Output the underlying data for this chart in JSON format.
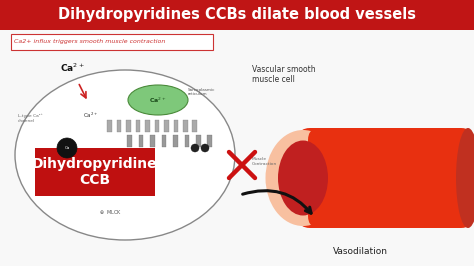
{
  "title": "Dihydropyridines CCBs dilate blood vessels",
  "title_bg_color": "#c01515",
  "title_text_color": "#ffffff",
  "bg_color": "#f8f8f8",
  "subtitle_box": "Ca2+ influx triggers smooth muscle contraction",
  "label_vascular": "Vascular smooth\nmuscle cell",
  "label_vasodilation": "Vasodilation",
  "label_ccb": "Dihydropyridine\nCCB",
  "ccb_box_color": "#bf1010",
  "ccb_text_color": "#ffffff",
  "arrow_color": "#111111",
  "cross_color": "#cc1111",
  "vessel_outer_color": "#e83010",
  "vessel_highlight_color": "#f05030",
  "vessel_wall_color": "#f8c0a0",
  "vessel_lumen_color": "#c02020",
  "cell_edge_color": "#888888",
  "sr_color": "#7ec87a",
  "sr_edge_color": "#4a8a3a"
}
